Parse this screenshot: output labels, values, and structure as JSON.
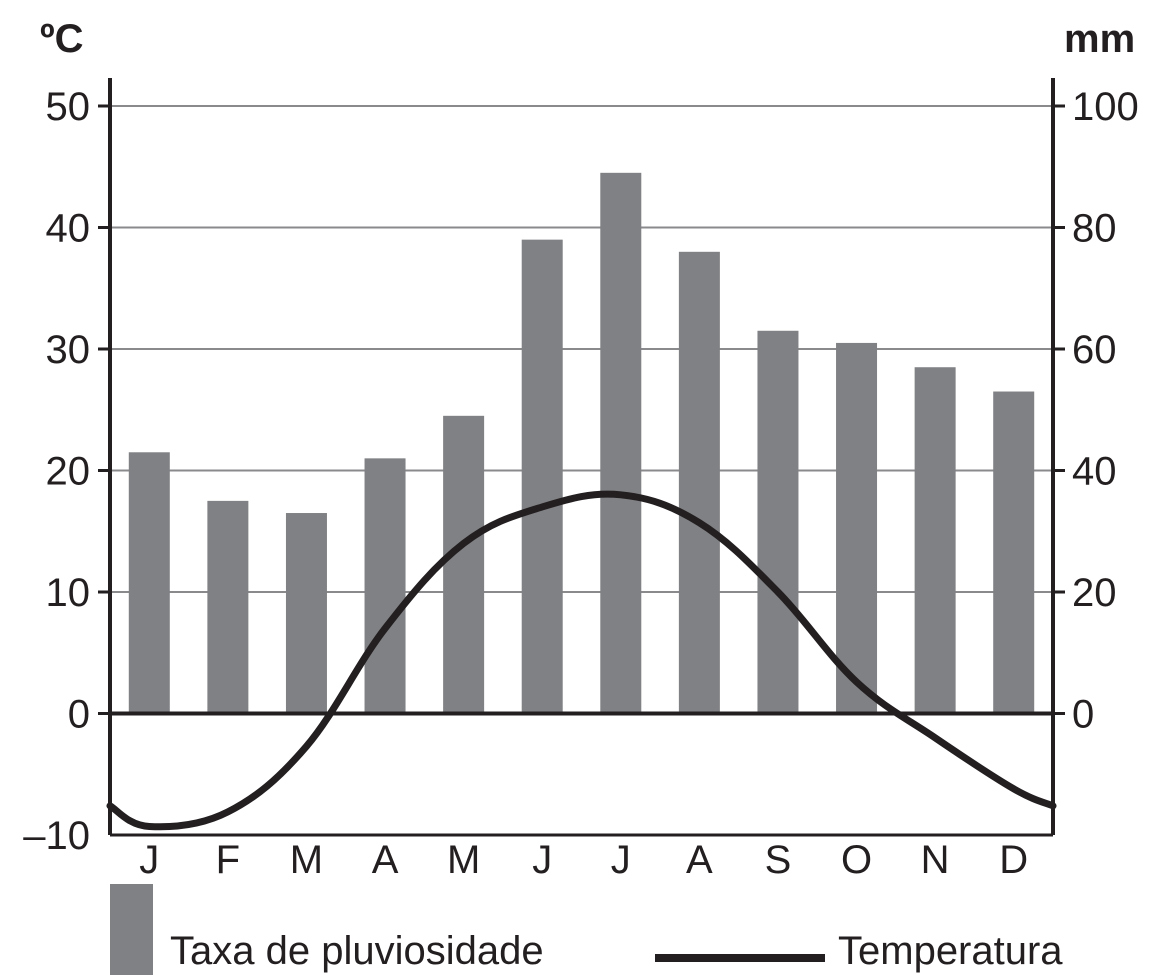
{
  "chart_data": {
    "type": "bar",
    "categories": [
      "J",
      "F",
      "M",
      "A",
      "M",
      "J",
      "J",
      "A",
      "S",
      "O",
      "N",
      "D"
    ],
    "series": [
      {
        "name": "Taxa de pluviosidade",
        "type": "bar",
        "axis": "right",
        "color": "#808184",
        "values": [
          43,
          35,
          33,
          42,
          49,
          78,
          89,
          76,
          63,
          61,
          57,
          53
        ]
      },
      {
        "name": "Temperatura",
        "type": "line",
        "axis": "left",
        "color": "#231f20",
        "values": [
          -9.3,
          -8.1,
          -2.7,
          7.0,
          14.0,
          17.0,
          18.0,
          15.7,
          10.0,
          2.6,
          -2.0,
          -6.2
        ],
        "start_value": -7.6,
        "end_value": -7.6
      }
    ],
    "y_left": {
      "label": "ºC",
      "ylim": [
        -10,
        50
      ],
      "ticks": [
        -10,
        0,
        10,
        20,
        30,
        40,
        50
      ],
      "tick_labels": [
        "–10",
        "0",
        "10",
        "20",
        "30",
        "40",
        "50"
      ]
    },
    "y_right": {
      "label": "mm",
      "ylim": [
        -20,
        100
      ],
      "ticks": [
        0,
        20,
        40,
        60,
        80,
        100
      ],
      "tick_labels": [
        "0",
        "20",
        "40",
        "60",
        "80",
        "100"
      ]
    },
    "grid": true,
    "legend": {
      "position": "bottom",
      "items": [
        "Taxa de pluviosidade",
        "Temperatura"
      ]
    }
  }
}
